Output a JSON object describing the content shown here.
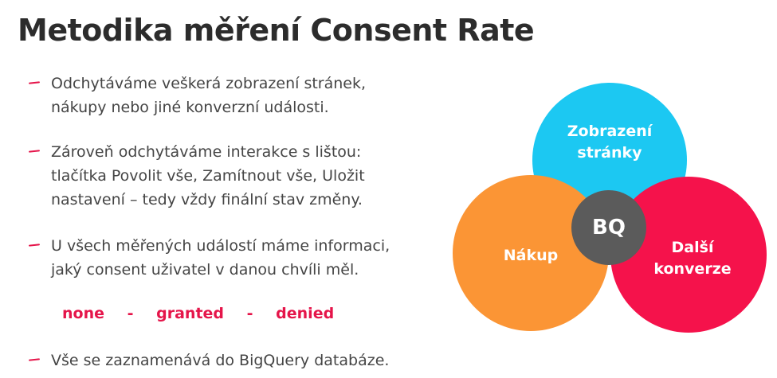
{
  "slide": {
    "title": "Metodika měření Consent Rate"
  },
  "bullets": [
    {
      "lines": [
        "Odchytáváme veškerá zobrazení stránek,",
        "nákupy nebo jiné konverzní události."
      ]
    },
    {
      "lines": [
        "Zároveň odchytáváme interakce s lištou:",
        "tlačítka Povolit vše, Zamítnout vše, Uložit",
        "nastavení – tedy vždy finální stav změny."
      ]
    },
    {
      "lines": [
        "U všech měřených událostí máme informaci,",
        "jaký consent uživatel v danou chvíli měl."
      ]
    },
    {
      "lines": [
        "Vše se zaznamenává do BigQuery databáze."
      ]
    }
  ],
  "consent_values": {
    "items": [
      "none",
      "granted",
      "denied"
    ],
    "separator": "-"
  },
  "diagram": {
    "circles": {
      "top": {
        "lines": [
          "Zobrazení",
          "stránky"
        ],
        "color": "#1cc8f2"
      },
      "left": {
        "lines": [
          "Nákup"
        ],
        "color": "#fb9535"
      },
      "right": {
        "lines": [
          "Další",
          "konverze"
        ],
        "color": "#f5124b"
      },
      "center": {
        "lines": [
          "BQ"
        ],
        "color": "#5b5b5b"
      }
    }
  },
  "colors": {
    "accent": "#e5154a",
    "title_text": "#2c2c2c",
    "body_text": "#454545"
  }
}
